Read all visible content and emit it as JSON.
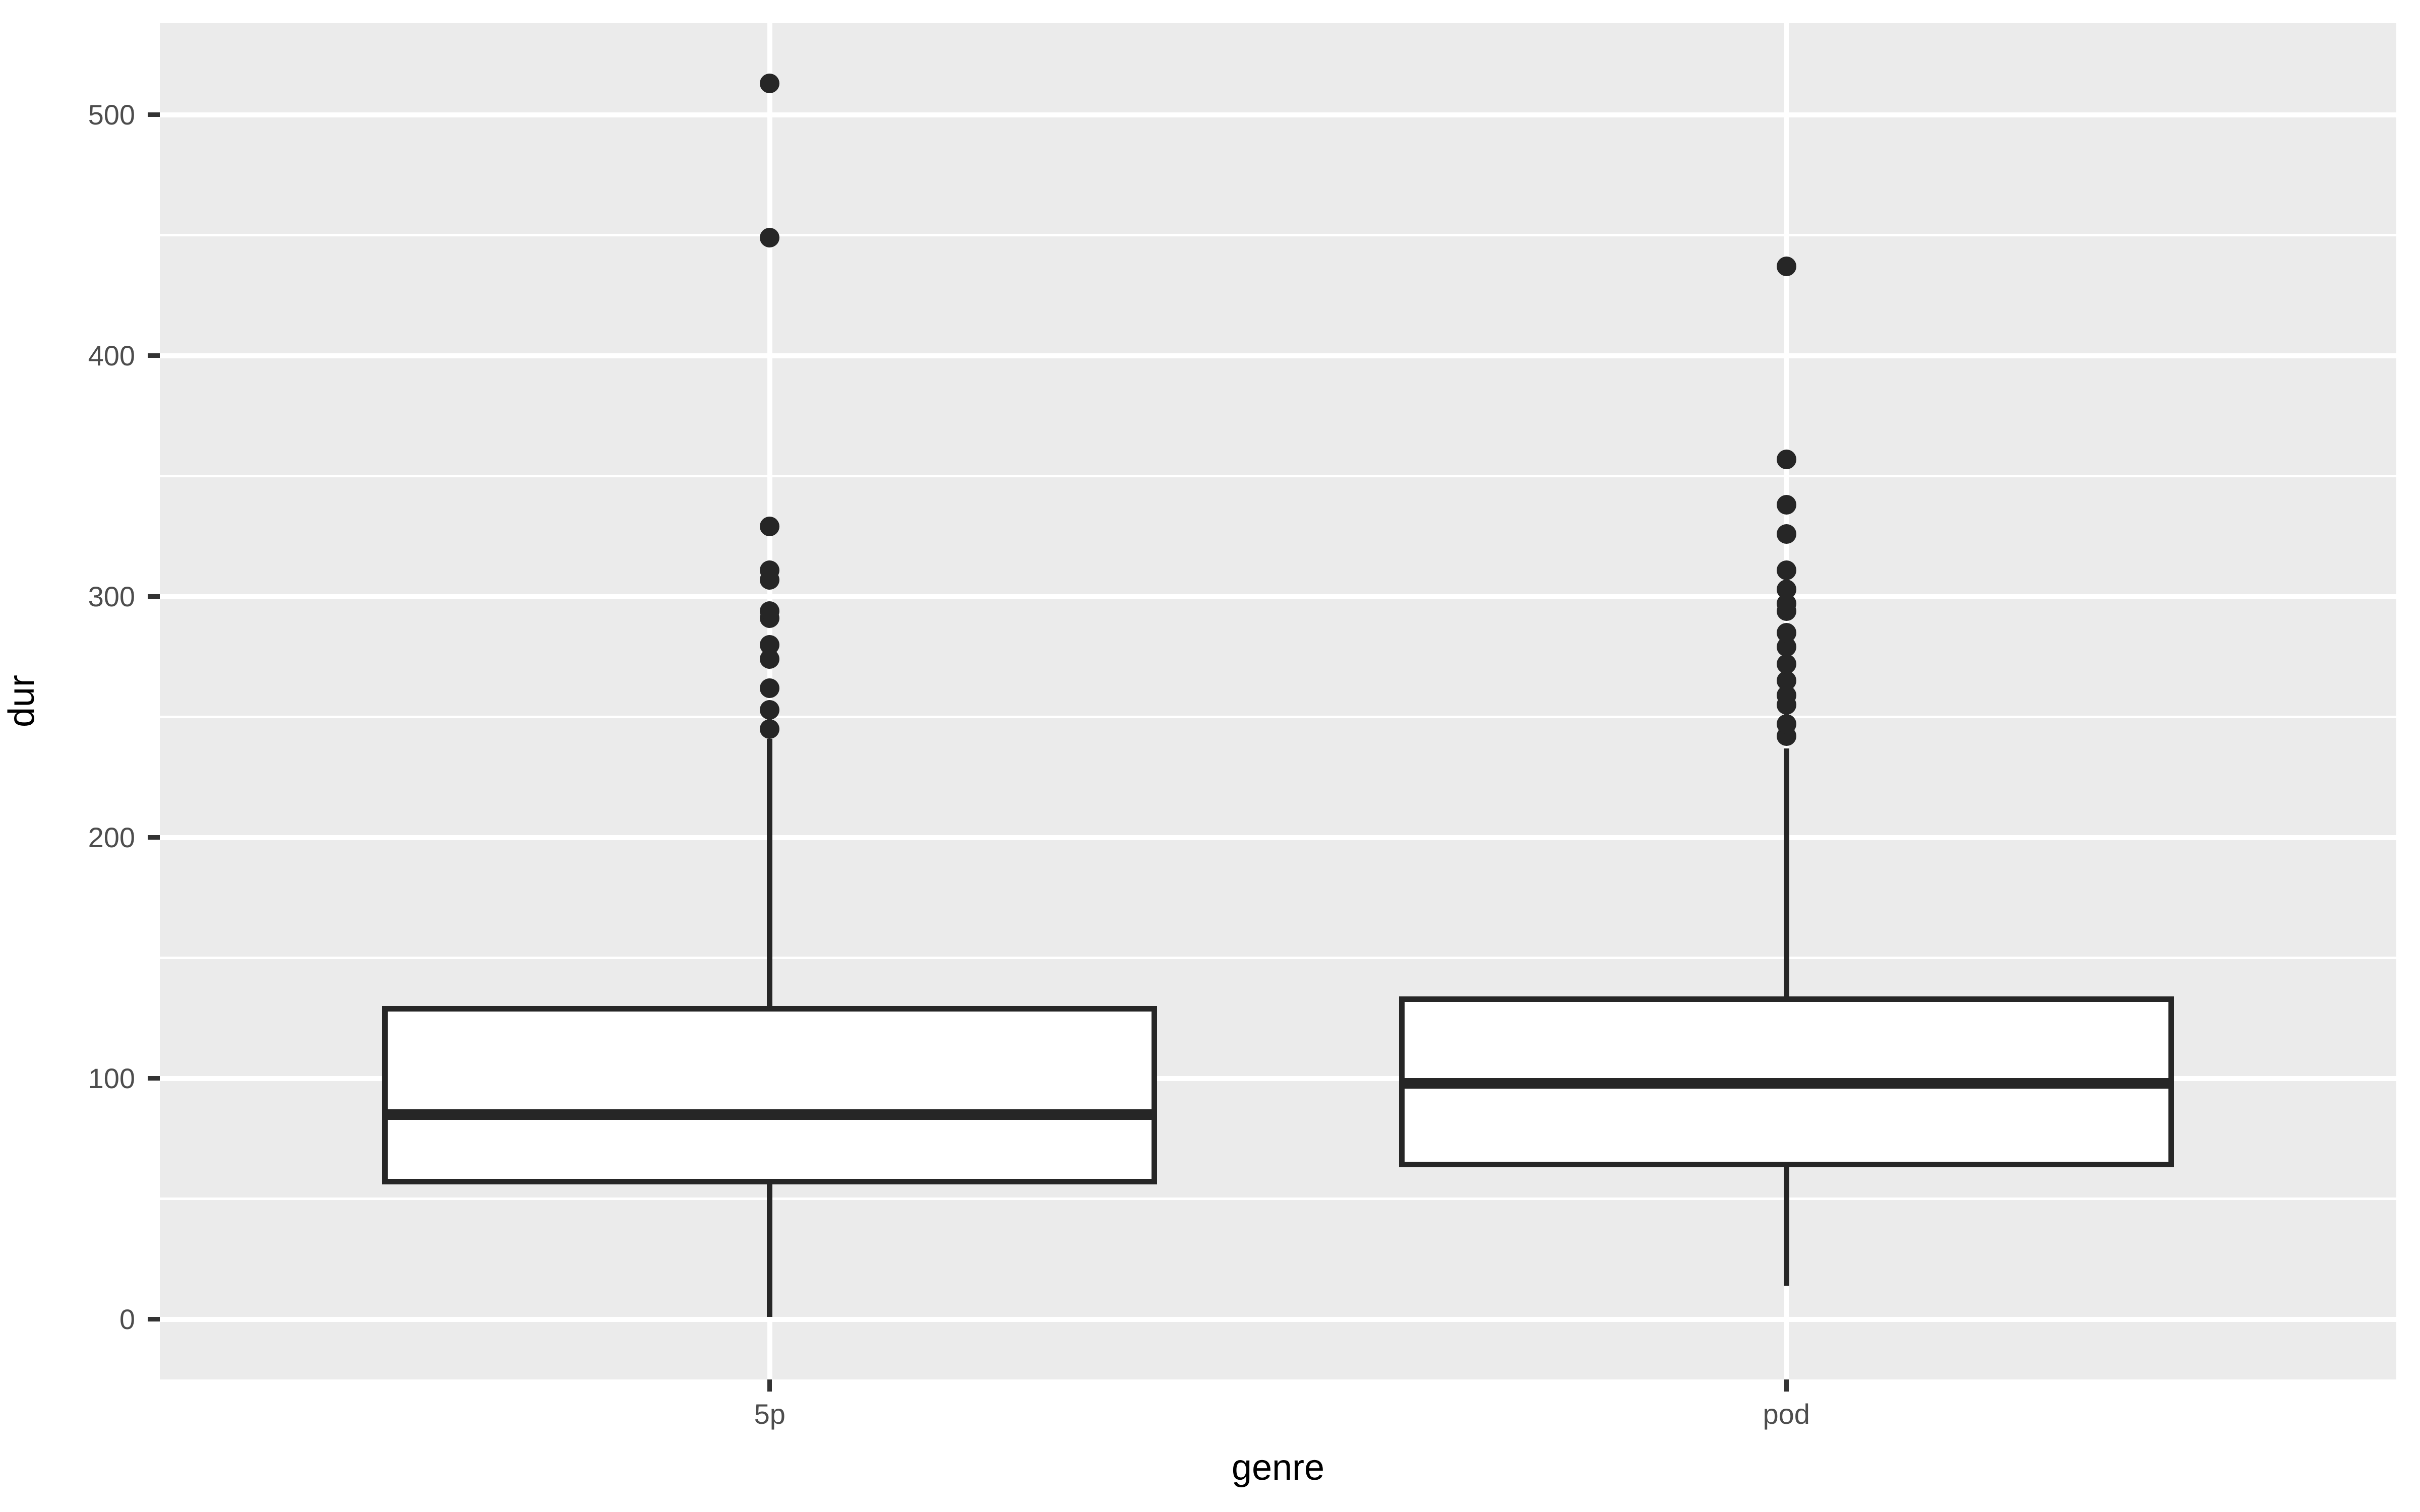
{
  "chart_data": {
    "type": "boxplot",
    "title": "",
    "xlabel": "genre",
    "ylabel": "dur",
    "categories": [
      "5p",
      "pod"
    ],
    "ylim": [
      -25,
      538
    ],
    "yticks": [
      0,
      100,
      200,
      300,
      400,
      500
    ],
    "yticks_minor": [
      50,
      150,
      250,
      350,
      450
    ],
    "grid": "horizontal major+minor white lines; vertical white major line at each category center",
    "legend": "none",
    "series": [
      {
        "category": "5p",
        "q1": 56,
        "median": 85,
        "q3": 130,
        "whisker_low": 1,
        "whisker_high": 241,
        "outliers": [
          245,
          253,
          262,
          274,
          280,
          291,
          294,
          307,
          311,
          329,
          449,
          513
        ]
      },
      {
        "category": "pod",
        "q1": 63,
        "median": 98,
        "q3": 134,
        "whisker_low": 14,
        "whisker_high": 237,
        "outliers": [
          242,
          247,
          255,
          259,
          265,
          272,
          279,
          285,
          294,
          297,
          303,
          311,
          326,
          338,
          357,
          437
        ]
      }
    ],
    "style": {
      "panel_background": "#EBEBEB",
      "grid_color": "#FFFFFF",
      "box_fill": "#FFFFFF",
      "box_stroke": "#262626",
      "outlier_color": "#262626",
      "tick_mark_color": "#333333",
      "tick_label_color": "#4D4D4D",
      "axis_title_color": "#000000"
    }
  }
}
